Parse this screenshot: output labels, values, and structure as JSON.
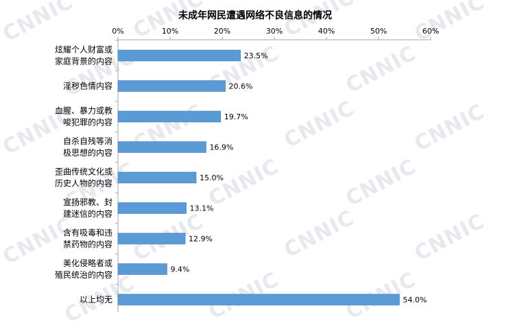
{
  "watermark": "CNNIC",
  "chart_data": {
    "type": "bar",
    "orientation": "horizontal",
    "title": "未成年网民遭遇网络不良信息的情况",
    "xlabel": "",
    "ylabel": "",
    "xlim": [
      0,
      60
    ],
    "x_ticks": [
      "0%",
      "10%",
      "20%",
      "30%",
      "40%",
      "50%",
      "60%"
    ],
    "x_axis_position": "top",
    "grid": false,
    "legend": "none",
    "categories": [
      [
        "炫耀个人财富或",
        "家庭背景的内容"
      ],
      [
        "淫秽色情内容"
      ],
      [
        "血腥、暴力或教",
        "唆犯罪的内容"
      ],
      [
        "自杀自残等消",
        "极思想的内容"
      ],
      [
        "歪曲传统文化或",
        "历史人物的内容"
      ],
      [
        "宣扬邪教、封",
        "建迷信的内容"
      ],
      [
        "含有吸毒和违",
        "禁药物的内容"
      ],
      [
        "美化侵略者或",
        "殖民统治的内容"
      ],
      [
        "以上均无"
      ]
    ],
    "values": [
      23.5,
      20.6,
      19.7,
      16.9,
      15.0,
      13.1,
      12.9,
      9.4,
      54.0
    ],
    "value_labels": [
      "23.5%",
      "20.6%",
      "19.7%",
      "16.9%",
      "15.0%",
      "13.1%",
      "12.9%",
      "9.4%",
      "54.0%"
    ],
    "colors": {
      "bar": "#5b9bd5",
      "bar_edge": "#3f7dbd",
      "axis": "#a6a6a6",
      "watermark": "#e6e9ee"
    }
  }
}
